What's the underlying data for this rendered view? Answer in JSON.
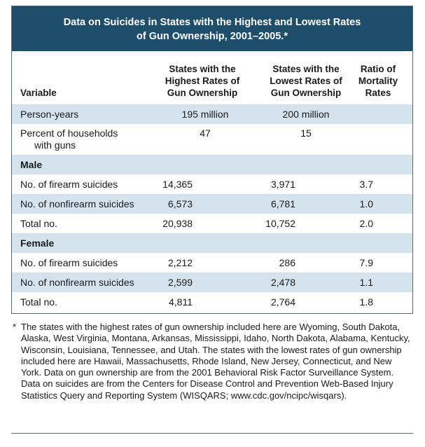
{
  "title": {
    "line1": "Data on Suicides in States with the Highest and Lowest Rates",
    "line2": "of Gun Ownership, 2001–2005.*"
  },
  "header": {
    "variable": "Variable",
    "col1": [
      "States with the",
      "Highest Rates of",
      "Gun Ownership"
    ],
    "col2": [
      "States with the",
      "Lowest Rates of",
      "Gun Ownership"
    ],
    "col3": [
      "Ratio of",
      "Mortality",
      "Rates"
    ]
  },
  "rows": [
    {
      "label": "Person-years",
      "high": "195 million",
      "low": "200 million",
      "ratio": ""
    },
    {
      "label_line1": "Percent of households",
      "label_line2": "with guns",
      "high": "47",
      "low": "15",
      "ratio": ""
    },
    {
      "section": "Male"
    },
    {
      "label": "No. of firearm suicides",
      "high": "14,365",
      "low": "3,971",
      "ratio": "3.7"
    },
    {
      "label": "No. of nonfirearm suicides",
      "high": "6,573",
      "low": "6,781",
      "ratio": "1.0"
    },
    {
      "label": "Total no.",
      "high": "20,938",
      "low": "10,752",
      "ratio": "2.0"
    },
    {
      "section": "Female"
    },
    {
      "label": "No. of firearm suicides",
      "high": "2,212",
      "low": "286",
      "ratio": "7.9"
    },
    {
      "label": "No. of nonfirearm suicides",
      "high": "2,599",
      "low": "2,478",
      "ratio": "1.1"
    },
    {
      "label": "Total no.",
      "high": "4,811",
      "low": "2,764",
      "ratio": "1.8"
    }
  ],
  "footnote": {
    "marker": "*",
    "text": "The states with the highest rates of gun ownership included here are Wyoming, South Dakota, Alaska, West Virginia, Montana, Arkansas, Mississippi, Idaho, North Dakota, Alabama, Kentucky, Wisconsin, Louisiana, Tennessee, and Utah. The states with the lowest rates of gun ownership included here are Hawaii, Massachusetts, Rhode Island, New Jersey, Connecticut, and New York. Data on gun ownership are from the 2001 Behavioral Risk Factor Surveillance System. Data on suicides are from the Centers for Disease Control and Prevention Web-Based Injury Statistics Query and Reporting System (WISQARS; www.cdc.gov/ncipc/wisqars)."
  },
  "colors": {
    "title_bg": "#1f4e6b",
    "row_shade": "#d4e3ee"
  }
}
